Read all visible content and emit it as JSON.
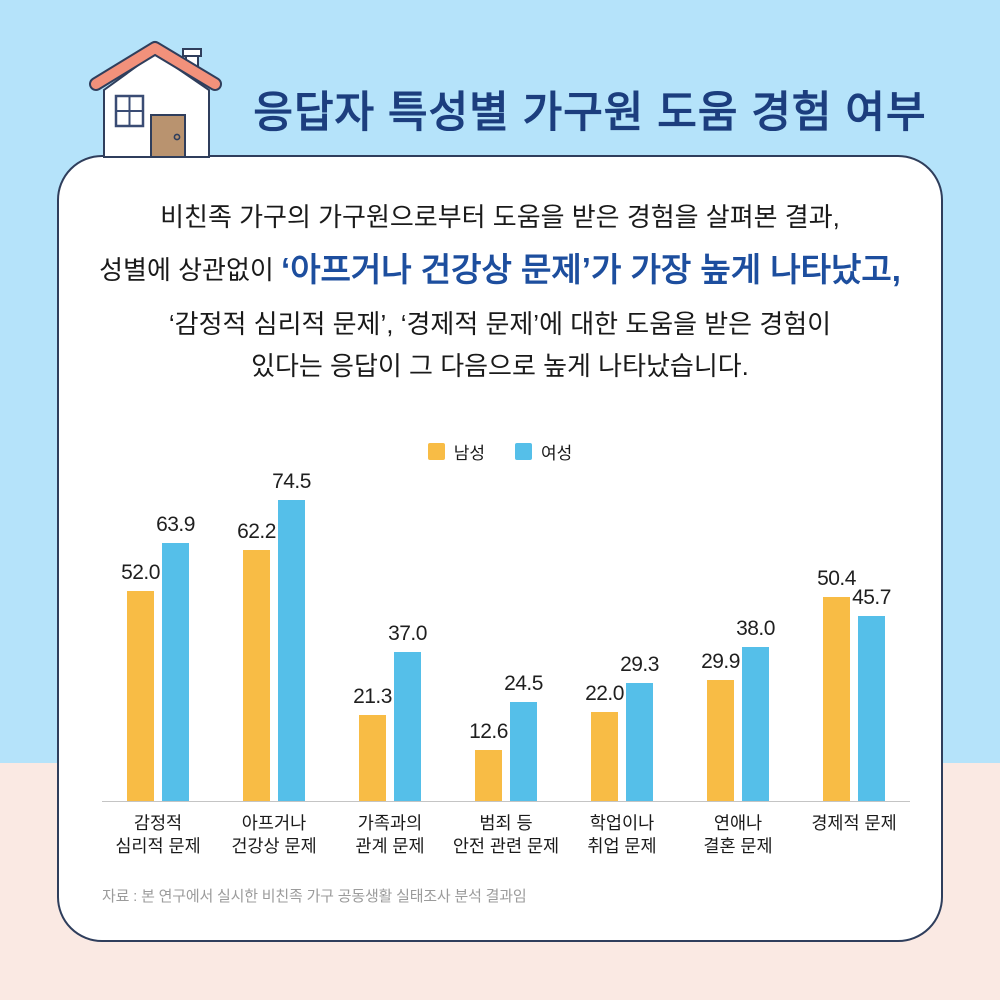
{
  "title": "응답자 특성별 가구원 도움 경험 여부",
  "description": {
    "line1": "비친족 가구의 가구원으로부터 도움을 받은 경험을 살펴본 결과,",
    "line2_normal": "성별에 상관없이 ",
    "line2_highlight": "‘아프거나 건강상 문제’가 가장 높게 나타났고,",
    "line3": "‘감정적 심리적 문제’, ‘경제적 문제’에 대한 도움을 받은 경험이",
    "line4": "있다는 응답이 그 다음으로 높게 나타났습니다."
  },
  "chart_data": {
    "type": "bar",
    "categories": [
      [
        "감정적",
        "심리적 문제"
      ],
      [
        "아프거나",
        "건강상 문제"
      ],
      [
        "가족과의",
        "관계 문제"
      ],
      [
        "범죄 등",
        "안전 관련 문제"
      ],
      [
        "학업이나",
        "취업 문제"
      ],
      [
        "연애나",
        "결혼 문제"
      ],
      [
        "경제적 문제"
      ]
    ],
    "series": [
      {
        "name": "남성",
        "color": "#F8BC45",
        "values": [
          52.0,
          62.2,
          21.3,
          12.6,
          22.0,
          29.9,
          50.4
        ],
        "labels": [
          "52.0",
          "62.2",
          "21.3",
          "12.6",
          "22.0",
          "29.9",
          "50.4"
        ]
      },
      {
        "name": "여성",
        "color": "#55BFE9",
        "values": [
          63.9,
          74.5,
          37.0,
          24.5,
          29.3,
          38.0,
          45.7
        ],
        "labels": [
          "63.9",
          "74.5",
          "37.0",
          "24.5",
          "29.3",
          "38.0",
          "45.7"
        ]
      }
    ],
    "ylim": [
      0,
      80
    ],
    "grid": false,
    "legend_position": "top",
    "value_labels": true
  },
  "source_note": "자료 : 본 연구에서 실시한 비친족 가구 공동생활 실태조사 분석 결과임",
  "colors": {
    "background_top": "#B5E3FA",
    "background_bottom": "#FAE9E3",
    "card_border": "#2F3E5C",
    "title": "#1C3E7E",
    "highlight_text": "#1D4E9E",
    "male_bar": "#F8BC45",
    "female_bar": "#55BFE9",
    "axis_line": "#C4C4C4",
    "source_text": "#9B9B9B",
    "house_roof": "#F2917B",
    "house_door": "#B9936F"
  }
}
